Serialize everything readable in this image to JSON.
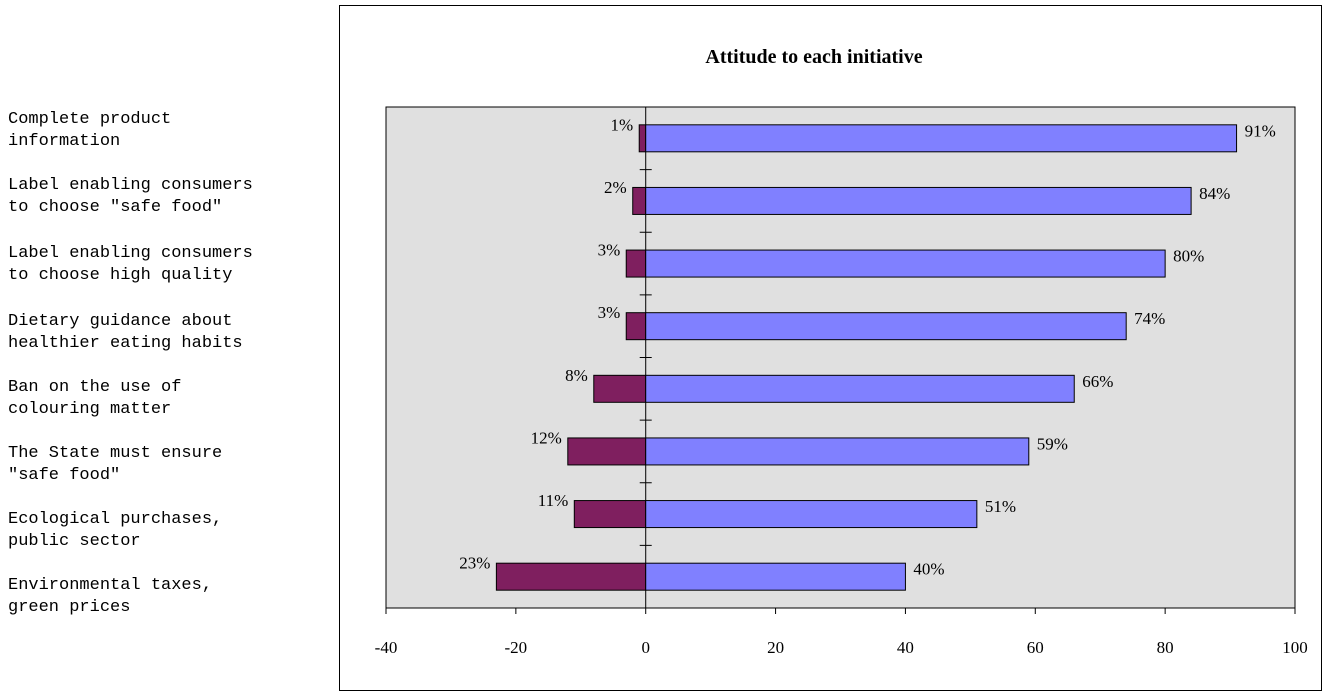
{
  "chart_data": {
    "type": "bar",
    "orientation": "horizontal",
    "stacked": "diverging",
    "title": "Attitude to each initiative",
    "categories": [
      "Complete product\ninformation",
      "Label enabling consumers\nto choose \"safe food\"",
      "Label enabling consumers\nto choose high quality",
      "Dietary guidance about\nhealthier eating habits",
      "Ban on the use of\ncolouring matter",
      "The State must ensure\n\"safe food\"",
      "Ecological purchases,\npublic sector",
      "Environmental taxes,\ngreen prices"
    ],
    "series": [
      {
        "values": [
          -1,
          -2,
          -3,
          -3,
          -8,
          -12,
          -11,
          -23
        ],
        "labels": [
          "1%",
          "2%",
          "3%",
          "3%",
          "8%",
          "12%",
          "11%",
          "23%"
        ],
        "color": "#7f1f5f"
      },
      {
        "values": [
          91,
          84,
          80,
          74,
          66,
          59,
          51,
          40
        ],
        "labels": [
          "91%",
          "84%",
          "80%",
          "74%",
          "66%",
          "59%",
          "51%",
          "40%"
        ],
        "color": "#8080ff"
      }
    ],
    "xlim": [
      -40,
      100
    ],
    "xticks": [
      "-40",
      "-20",
      "0",
      "20",
      "40",
      "60",
      "80",
      "100"
    ],
    "plot_background": "#e0e0e0",
    "grid": false,
    "legend": "none"
  }
}
